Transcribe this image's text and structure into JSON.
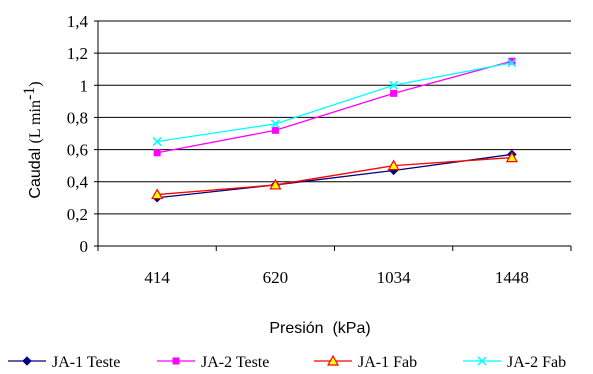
{
  "chart_data": {
    "type": "line",
    "categories": [
      "414",
      "620",
      "1034",
      "1448"
    ],
    "series": [
      {
        "name": "JA-1 Teste",
        "values": [
          0.3,
          0.38,
          0.47,
          0.57
        ],
        "color": "#000080",
        "marker": "diamond"
      },
      {
        "name": "JA-2 Teste",
        "values": [
          0.58,
          0.72,
          0.95,
          1.15
        ],
        "color": "#ff00ff",
        "marker": "square"
      },
      {
        "name": "JA-1 Fab",
        "values": [
          0.32,
          0.38,
          0.5,
          0.55
        ],
        "color": "#ff0000",
        "marker": "triangle"
      },
      {
        "name": "JA-2 Fab",
        "values": [
          0.65,
          0.76,
          1.0,
          1.14
        ],
        "color": "#00ffff",
        "marker": "x"
      }
    ],
    "xlabel": "Presión  (kPa)",
    "ylabel": {
      "prefix": "Caudal  ",
      "unit": "(L min",
      "exponent": "-1",
      "suffix": ")"
    },
    "ylim": [
      0,
      1.4
    ],
    "yticks": [
      "0",
      "0,2",
      "0,4",
      "0,6",
      "0,8",
      "1",
      "1,2",
      "1,4"
    ],
    "grid": true,
    "legend": "bottom"
  }
}
